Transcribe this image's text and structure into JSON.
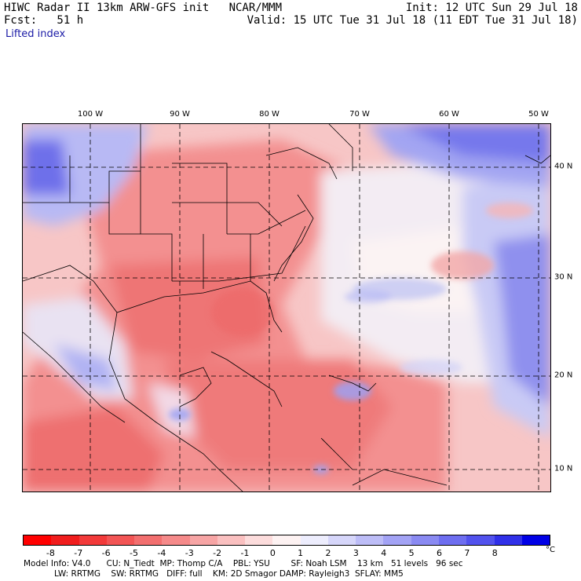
{
  "header": {
    "line1_left": "HIWC Radar II 13km ARW-GFS init   NCAR/MMM",
    "line1_right": "Init: 12 UTC Sun 29 Jul 18",
    "line2_left": "Fcst:   51 h",
    "line2_right": "Valid: 15 UTC Tue 31 Jul 18 (11 EDT Tue 31 Jul 18)",
    "field_name": "Lifted index"
  },
  "longitude_labels": [
    "100 W",
    "90 W",
    "80 W",
    "70 W",
    "60 W",
    "50 W"
  ],
  "latitude_labels": [
    "40 N",
    "30 N",
    "20 N",
    "10 N"
  ],
  "legend": {
    "ticks": [
      "-8",
      "-7",
      "-6",
      "-5",
      "-4",
      "-3",
      "-2",
      "-1",
      "0",
      "1",
      "2",
      "3",
      "4",
      "5",
      "6",
      "7",
      "8"
    ],
    "unit": "°C",
    "colors": [
      "#ff0000",
      "#f01d1d",
      "#f23a3a",
      "#f25555",
      "#f26f6f",
      "#f58a8a",
      "#f7a5a5",
      "#fac0c0",
      "#fcdcdc",
      "#fdf2f2",
      "#ededfd",
      "#d6d6fa",
      "#bdbdf7",
      "#a3a3f5",
      "#8a8af2",
      "#6e6ef0",
      "#5252ed",
      "#3030e8",
      "#0000e6"
    ]
  },
  "footer": {
    "line1": "Model Info: V4.0      CU: N_Tiedt  MP: Thomp C/A    PBL: YSU        SF: Noah LSM    13 km   51 levels   96 sec",
    "line2": "LW: RRTMG    SW: RRTMG   DIFF: full    KM: 2D Smagor DAMP: Rayleigh3  SFLAY: MM5"
  }
}
